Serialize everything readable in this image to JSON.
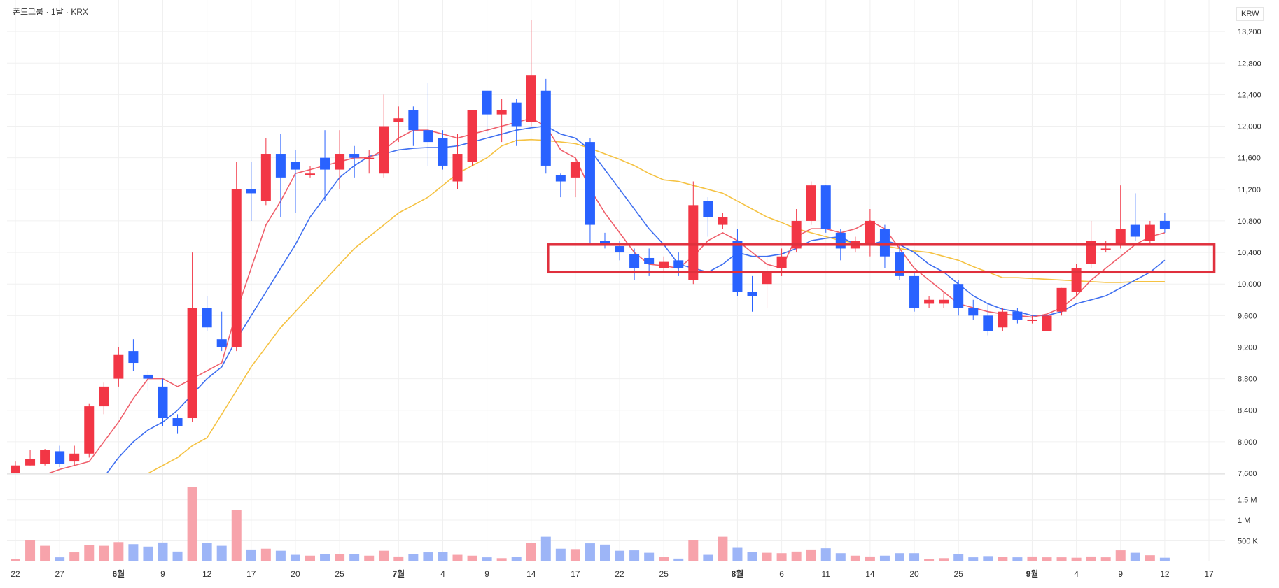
{
  "header": {
    "symbol": "폰드그룹 · 1날 · KRX",
    "currency": "KRW"
  },
  "colors": {
    "up": "#f23645",
    "down": "#2962ff",
    "ma5": "#ef5f6b",
    "ma10": "#3f6ff0",
    "ma20": "#f5c242",
    "grid": "#f0f0f0",
    "axis_text": "#333333",
    "vol_up": "#f7a3ab",
    "vol_down": "#9db5f7",
    "highlight": "#e0303d"
  },
  "chart_data": {
    "type": "candlestick",
    "y_ticks": [
      "13,200",
      "12,800",
      "12,400",
      "12,000",
      "11,600",
      "11,200",
      "10,800",
      "10,400",
      "10,000",
      "9,600",
      "9,200",
      "8,800",
      "8,400",
      "8,000",
      "7,600"
    ],
    "y_tick_values": [
      13200,
      12800,
      12400,
      12000,
      11600,
      11200,
      10800,
      10400,
      10000,
      9600,
      9200,
      8800,
      8400,
      8000,
      7600
    ],
    "price_range": [
      7600,
      13600
    ],
    "vol_ticks": [
      "1.5 M",
      "1 M",
      "500 K"
    ],
    "vol_tick_values": [
      1500000,
      1000000,
      500000
    ],
    "vol_max": 1900000,
    "x_labels": [
      {
        "text": "22",
        "i": 0,
        "bold": false
      },
      {
        "text": "27",
        "i": 3,
        "bold": false
      },
      {
        "text": "6월",
        "i": 7,
        "bold": true
      },
      {
        "text": "9",
        "i": 10,
        "bold": false
      },
      {
        "text": "12",
        "i": 13,
        "bold": false
      },
      {
        "text": "17",
        "i": 16,
        "bold": false
      },
      {
        "text": "20",
        "i": 19,
        "bold": false
      },
      {
        "text": "25",
        "i": 22,
        "bold": false
      },
      {
        "text": "7월",
        "i": 26,
        "bold": true
      },
      {
        "text": "4",
        "i": 29,
        "bold": false
      },
      {
        "text": "9",
        "i": 32,
        "bold": false
      },
      {
        "text": "14",
        "i": 35,
        "bold": false
      },
      {
        "text": "17",
        "i": 38,
        "bold": false
      },
      {
        "text": "22",
        "i": 41,
        "bold": false
      },
      {
        "text": "25",
        "i": 44,
        "bold": false
      },
      {
        "text": "8월",
        "i": 49,
        "bold": true
      },
      {
        "text": "6",
        "i": 52,
        "bold": false
      },
      {
        "text": "11",
        "i": 55,
        "bold": false
      },
      {
        "text": "14",
        "i": 58,
        "bold": false
      },
      {
        "text": "20",
        "i": 61,
        "bold": false
      },
      {
        "text": "25",
        "i": 64,
        "bold": false
      },
      {
        "text": "9월",
        "i": 69,
        "bold": true
      },
      {
        "text": "4",
        "i": 72,
        "bold": false
      },
      {
        "text": "9",
        "i": 75,
        "bold": false
      },
      {
        "text": "12",
        "i": 78,
        "bold": false
      },
      {
        "text": "17",
        "i": 81,
        "bold": false
      }
    ],
    "candles": [
      [
        7600,
        7700,
        7400,
        7750
      ],
      [
        7700,
        7780,
        7700,
        7900
      ],
      [
        7720,
        7900,
        7700,
        7910
      ],
      [
        7880,
        7720,
        7680,
        7950
      ],
      [
        7750,
        7850,
        7700,
        7950
      ],
      [
        7850,
        8450,
        7800,
        8480
      ],
      [
        8450,
        8700,
        8350,
        8750
      ],
      [
        8800,
        9100,
        8700,
        9200
      ],
      [
        9150,
        9000,
        8900,
        9300
      ],
      [
        8850,
        8800,
        8650,
        8900
      ],
      [
        8700,
        8300,
        8200,
        8800
      ],
      [
        8300,
        8200,
        8100,
        8350
      ],
      [
        8300,
        9700,
        8250,
        10400
      ],
      [
        9700,
        9450,
        9400,
        9850
      ],
      [
        9300,
        9200,
        9150,
        9650
      ],
      [
        9200,
        11200,
        9150,
        11550
      ],
      [
        11200,
        11150,
        10800,
        11550
      ],
      [
        11050,
        11650,
        11000,
        11850
      ],
      [
        11650,
        11350,
        10850,
        11900
      ],
      [
        11550,
        11450,
        10900,
        11700
      ],
      [
        11380,
        11400,
        11350,
        11500
      ],
      [
        11600,
        11450,
        11050,
        11950
      ],
      [
        11450,
        11650,
        11200,
        11950
      ],
      [
        11650,
        11600,
        11350,
        11750
      ],
      [
        11600,
        11600,
        11400,
        11700
      ],
      [
        11400,
        12000,
        11350,
        12400
      ],
      [
        12050,
        12100,
        11800,
        12250
      ],
      [
        12200,
        11950,
        11750,
        12250
      ],
      [
        11950,
        11800,
        11500,
        12550
      ],
      [
        11850,
        11500,
        11450,
        11950
      ],
      [
        11300,
        11650,
        11200,
        11900
      ],
      [
        11550,
        12200,
        11500,
        12200
      ],
      [
        12450,
        12150,
        11900,
        12450
      ],
      [
        12150,
        12200,
        11800,
        12350
      ],
      [
        12300,
        12000,
        11750,
        12350
      ],
      [
        12050,
        12650,
        12000,
        13350
      ],
      [
        12450,
        11500,
        11400,
        12600
      ],
      [
        11380,
        11300,
        11100,
        11400
      ],
      [
        11350,
        11550,
        11100,
        11600
      ],
      [
        11800,
        10750,
        10500,
        11850
      ],
      [
        10550,
        10500,
        10450,
        10650
      ],
      [
        10480,
        10400,
        10300,
        10550
      ],
      [
        10380,
        10200,
        10050,
        10450
      ],
      [
        10330,
        10250,
        10100,
        10450
      ],
      [
        10200,
        10280,
        10150,
        10350
      ],
      [
        10300,
        10200,
        10100,
        10400
      ],
      [
        10050,
        11000,
        10000,
        11300
      ],
      [
        11050,
        10850,
        10600,
        11100
      ],
      [
        10750,
        10850,
        10700,
        10900
      ],
      [
        10550,
        9900,
        9850,
        10700
      ],
      [
        9900,
        9850,
        9650,
        10100
      ],
      [
        10000,
        10150,
        9700,
        10350
      ],
      [
        10200,
        10350,
        10100,
        10450
      ],
      [
        10450,
        10800,
        10400,
        10950
      ],
      [
        10800,
        11250,
        10750,
        11300
      ],
      [
        11250,
        10700,
        10650,
        11250
      ],
      [
        10650,
        10450,
        10300,
        10700
      ],
      [
        10450,
        10550,
        10400,
        10600
      ],
      [
        10500,
        10800,
        10350,
        10950
      ],
      [
        10700,
        10350,
        10200,
        10750
      ],
      [
        10400,
        10100,
        10050,
        10500
      ],
      [
        10100,
        9700,
        9650,
        10150
      ],
      [
        9750,
        9800,
        9700,
        9850
      ],
      [
        9750,
        9800,
        9700,
        9900
      ],
      [
        10000,
        9700,
        9600,
        10050
      ],
      [
        9700,
        9600,
        9550,
        9800
      ],
      [
        9600,
        9400,
        9350,
        9750
      ],
      [
        9450,
        9650,
        9400,
        9700
      ],
      [
        9650,
        9550,
        9500,
        9700
      ],
      [
        9550,
        9550,
        9500,
        9600
      ],
      [
        9400,
        9600,
        9350,
        9700
      ],
      [
        9650,
        9950,
        9600,
        9950
      ],
      [
        9900,
        10200,
        9850,
        10250
      ],
      [
        10250,
        10550,
        10200,
        10800
      ],
      [
        10450,
        10450,
        10400,
        10550
      ],
      [
        10500,
        10700,
        10450,
        11250
      ],
      [
        10750,
        10600,
        10550,
        11150
      ],
      [
        10550,
        10750,
        10500,
        10800
      ],
      [
        10800,
        10700,
        10650,
        10900
      ]
    ],
    "volume": [
      60000,
      520000,
      380000,
      100000,
      220000,
      400000,
      380000,
      470000,
      420000,
      360000,
      460000,
      240000,
      1800000,
      450000,
      380000,
      1250000,
      290000,
      310000,
      260000,
      160000,
      140000,
      180000,
      170000,
      170000,
      140000,
      260000,
      120000,
      180000,
      220000,
      230000,
      160000,
      140000,
      100000,
      80000,
      110000,
      450000,
      600000,
      310000,
      300000,
      440000,
      410000,
      260000,
      270000,
      210000,
      110000,
      70000,
      520000,
      160000,
      600000,
      330000,
      230000,
      210000,
      200000,
      240000,
      290000,
      320000,
      200000,
      140000,
      120000,
      140000,
      200000,
      200000,
      60000,
      80000,
      170000,
      100000,
      130000,
      110000,
      100000,
      120000,
      100000,
      100000,
      90000,
      120000,
      100000,
      270000,
      210000,
      150000,
      90000
    ],
    "ma5": [
      [
        0,
        7450
      ],
      [
        3,
        7650
      ],
      [
        5,
        7750
      ],
      [
        7,
        8250
      ],
      [
        8,
        8550
      ],
      [
        9,
        8800
      ],
      [
        10,
        8800
      ],
      [
        11,
        8700
      ],
      [
        12,
        8800
      ],
      [
        13,
        8900
      ],
      [
        14,
        9000
      ],
      [
        15,
        9650
      ],
      [
        16,
        10200
      ],
      [
        17,
        10750
      ],
      [
        18,
        11050
      ],
      [
        19,
        11400
      ],
      [
        20,
        11450
      ],
      [
        21,
        11500
      ],
      [
        22,
        11550
      ],
      [
        23,
        11600
      ],
      [
        24,
        11600
      ],
      [
        25,
        11700
      ],
      [
        26,
        11850
      ],
      [
        27,
        11950
      ],
      [
        28,
        11950
      ],
      [
        29,
        11900
      ],
      [
        30,
        11850
      ],
      [
        31,
        11900
      ],
      [
        32,
        11950
      ],
      [
        33,
        12000
      ],
      [
        34,
        12050
      ],
      [
        35,
        12100
      ],
      [
        36,
        12000
      ],
      [
        37,
        11700
      ],
      [
        38,
        11600
      ],
      [
        39,
        11200
      ],
      [
        40,
        10900
      ],
      [
        41,
        10650
      ],
      [
        42,
        10400
      ],
      [
        43,
        10250
      ],
      [
        44,
        10230
      ],
      [
        45,
        10200
      ],
      [
        46,
        10350
      ],
      [
        47,
        10550
      ],
      [
        48,
        10650
      ],
      [
        49,
        10550
      ],
      [
        50,
        10400
      ],
      [
        51,
        10250
      ],
      [
        52,
        10200
      ],
      [
        53,
        10600
      ],
      [
        54,
        10700
      ],
      [
        55,
        10700
      ],
      [
        56,
        10650
      ],
      [
        57,
        10700
      ],
      [
        58,
        10800
      ],
      [
        59,
        10700
      ],
      [
        60,
        10450
      ],
      [
        61,
        10200
      ],
      [
        62,
        10050
      ],
      [
        63,
        9900
      ],
      [
        64,
        9750
      ],
      [
        65,
        9700
      ],
      [
        66,
        9650
      ],
      [
        67,
        9620
      ],
      [
        68,
        9600
      ],
      [
        69,
        9580
      ],
      [
        70,
        9620
      ],
      [
        71,
        9700
      ],
      [
        72,
        9850
      ],
      [
        73,
        10050
      ],
      [
        74,
        10200
      ],
      [
        75,
        10350
      ],
      [
        76,
        10500
      ],
      [
        77,
        10600
      ],
      [
        78,
        10650
      ]
    ],
    "ma10": [
      [
        6,
        7550
      ],
      [
        7,
        7800
      ],
      [
        8,
        8000
      ],
      [
        9,
        8150
      ],
      [
        10,
        8250
      ],
      [
        11,
        8400
      ],
      [
        12,
        8600
      ],
      [
        13,
        8800
      ],
      [
        14,
        8950
      ],
      [
        15,
        9300
      ],
      [
        16,
        9600
      ],
      [
        17,
        9900
      ],
      [
        18,
        10200
      ],
      [
        19,
        10500
      ],
      [
        20,
        10850
      ],
      [
        21,
        11100
      ],
      [
        22,
        11350
      ],
      [
        23,
        11500
      ],
      [
        24,
        11620
      ],
      [
        25,
        11650
      ],
      [
        26,
        11700
      ],
      [
        27,
        11720
      ],
      [
        28,
        11730
      ],
      [
        29,
        11730
      ],
      [
        30,
        11750
      ],
      [
        31,
        11800
      ],
      [
        32,
        11850
      ],
      [
        33,
        11900
      ],
      [
        34,
        11950
      ],
      [
        35,
        11980
      ],
      [
        36,
        12000
      ],
      [
        37,
        11900
      ],
      [
        38,
        11850
      ],
      [
        39,
        11700
      ],
      [
        40,
        11450
      ],
      [
        41,
        11200
      ],
      [
        42,
        10950
      ],
      [
        43,
        10700
      ],
      [
        44,
        10500
      ],
      [
        45,
        10250
      ],
      [
        46,
        10200
      ],
      [
        47,
        10150
      ],
      [
        48,
        10250
      ],
      [
        49,
        10400
      ],
      [
        50,
        10350
      ],
      [
        51,
        10350
      ],
      [
        52,
        10380
      ],
      [
        53,
        10450
      ],
      [
        54,
        10550
      ],
      [
        55,
        10580
      ],
      [
        56,
        10600
      ],
      [
        57,
        10500
      ],
      [
        58,
        10500
      ],
      [
        59,
        10550
      ],
      [
        60,
        10500
      ],
      [
        61,
        10400
      ],
      [
        62,
        10250
      ],
      [
        63,
        10150
      ],
      [
        64,
        10000
      ],
      [
        65,
        9850
      ],
      [
        66,
        9750
      ],
      [
        67,
        9680
      ],
      [
        68,
        9650
      ],
      [
        69,
        9600
      ],
      [
        70,
        9600
      ],
      [
        71,
        9650
      ],
      [
        72,
        9750
      ],
      [
        73,
        9800
      ],
      [
        74,
        9850
      ],
      [
        75,
        9950
      ],
      [
        76,
        10050
      ],
      [
        77,
        10150
      ],
      [
        78,
        10300
      ]
    ],
    "ma20": [
      [
        9,
        7600
      ],
      [
        10,
        7700
      ],
      [
        11,
        7800
      ],
      [
        12,
        7950
      ],
      [
        13,
        8050
      ],
      [
        14,
        8350
      ],
      [
        15,
        8650
      ],
      [
        16,
        8950
      ],
      [
        17,
        9200
      ],
      [
        18,
        9450
      ],
      [
        19,
        9650
      ],
      [
        20,
        9850
      ],
      [
        21,
        10050
      ],
      [
        22,
        10250
      ],
      [
        23,
        10450
      ],
      [
        24,
        10600
      ],
      [
        25,
        10750
      ],
      [
        26,
        10900
      ],
      [
        27,
        11000
      ],
      [
        28,
        11100
      ],
      [
        29,
        11250
      ],
      [
        30,
        11400
      ],
      [
        31,
        11500
      ],
      [
        32,
        11600
      ],
      [
        33,
        11750
      ],
      [
        34,
        11820
      ],
      [
        35,
        11830
      ],
      [
        36,
        11820
      ],
      [
        37,
        11800
      ],
      [
        38,
        11780
      ],
      [
        39,
        11720
      ],
      [
        40,
        11650
      ],
      [
        41,
        11580
      ],
      [
        42,
        11500
      ],
      [
        43,
        11400
      ],
      [
        44,
        11320
      ],
      [
        45,
        11300
      ],
      [
        46,
        11250
      ],
      [
        47,
        11200
      ],
      [
        48,
        11150
      ],
      [
        49,
        11050
      ],
      [
        50,
        10950
      ],
      [
        51,
        10850
      ],
      [
        52,
        10780
      ],
      [
        53,
        10700
      ],
      [
        54,
        10650
      ],
      [
        55,
        10600
      ],
      [
        56,
        10550
      ],
      [
        57,
        10520
      ],
      [
        58,
        10500
      ],
      [
        59,
        10480
      ],
      [
        60,
        10450
      ],
      [
        61,
        10420
      ],
      [
        62,
        10400
      ],
      [
        63,
        10350
      ],
      [
        64,
        10300
      ],
      [
        65,
        10220
      ],
      [
        66,
        10150
      ],
      [
        67,
        10080
      ],
      [
        68,
        10080
      ],
      [
        69,
        10070
      ],
      [
        70,
        10060
      ],
      [
        71,
        10050
      ],
      [
        72,
        10040
      ],
      [
        73,
        10030
      ],
      [
        74,
        10020
      ],
      [
        75,
        10020
      ],
      [
        76,
        10030
      ],
      [
        77,
        10030
      ],
      [
        78,
        10030
      ]
    ],
    "highlight_box": {
      "i_start": 36,
      "i_end": 81.5,
      "price_top": 10500,
      "price_bottom": 10150
    }
  }
}
